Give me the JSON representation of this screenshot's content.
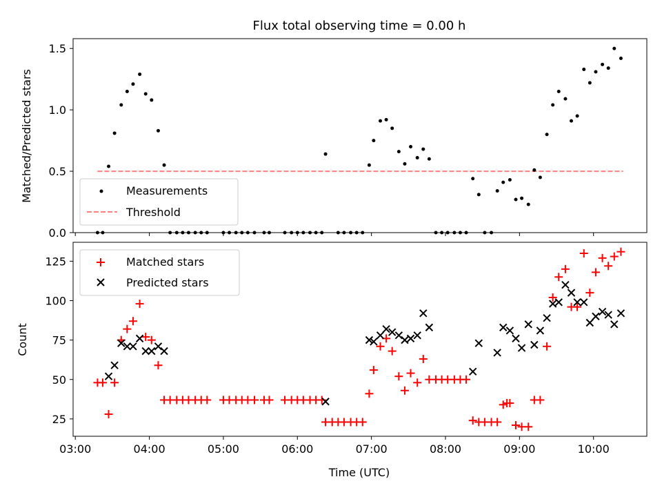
{
  "figure": {
    "title": "Flux total observing time = 0.00 h",
    "xlabel": "Time (UTC)",
    "x_ticks": [
      "03:00",
      "04:00",
      "05:00",
      "06:00",
      "07:00",
      "08:00",
      "09:00",
      "10:00"
    ]
  },
  "colors": {
    "measurements": "#000000",
    "threshold": "#ff7f7f",
    "matched": "#ff0000",
    "predicted": "#000000"
  },
  "chart_data": [
    {
      "type": "scatter",
      "panel": "top",
      "ylabel": "Matched/Predicted stars",
      "x_unit": "hours UTC",
      "xlim": [
        2.97,
        10.72
      ],
      "ylim": [
        0.0,
        1.58
      ],
      "y_ticks": [
        "0.0",
        "0.5",
        "1.0",
        "1.5"
      ],
      "grid": false,
      "legend": {
        "position": "lower-left",
        "entries": [
          "Measurements",
          "Threshold"
        ]
      },
      "threshold": {
        "name": "Threshold",
        "value": 0.5,
        "x_range": [
          3.3,
          10.4
        ],
        "style": "dashed"
      },
      "series": [
        {
          "name": "Measurements",
          "x": [
            3.3,
            3.37,
            3.45,
            3.53,
            3.62,
            3.7,
            3.78,
            3.87,
            3.95,
            4.03,
            4.12,
            4.2,
            4.28,
            4.37,
            4.45,
            4.53,
            4.62,
            4.7,
            4.78,
            5.0,
            5.08,
            5.17,
            5.25,
            5.33,
            5.42,
            5.55,
            5.62,
            5.83,
            5.92,
            6.0,
            6.08,
            6.17,
            6.25,
            6.33,
            6.38,
            6.55,
            6.63,
            6.72,
            6.8,
            6.88,
            6.97,
            7.03,
            7.12,
            7.2,
            7.28,
            7.37,
            7.45,
            7.53,
            7.62,
            7.7,
            7.78,
            7.87,
            7.95,
            8.03,
            8.12,
            8.2,
            8.28,
            8.37,
            8.45,
            8.53,
            8.62,
            8.7,
            8.78,
            8.87,
            8.95,
            9.03,
            9.12,
            9.2,
            9.28,
            9.37,
            9.45,
            9.53,
            9.62,
            9.7,
            9.78,
            9.87,
            9.95,
            10.03,
            10.12,
            10.2,
            10.28,
            10.37
          ],
          "y": [
            0,
            0,
            0.54,
            0.81,
            1.04,
            1.15,
            1.21,
            1.29,
            1.13,
            1.08,
            0.83,
            0.55,
            0,
            0,
            0,
            0,
            0,
            0,
            0,
            0,
            0,
            0,
            0,
            0,
            0,
            0,
            0,
            0,
            0,
            0,
            0,
            0,
            0,
            0,
            0.64,
            0,
            0,
            0,
            0,
            0,
            0.55,
            0.75,
            0.91,
            0.92,
            0.85,
            0.66,
            0.56,
            0.7,
            0.61,
            0.68,
            0.6,
            0,
            0,
            0,
            0,
            0,
            0,
            0.44,
            0.31,
            0,
            0,
            0.34,
            0.41,
            0.43,
            0.27,
            0.28,
            0.23,
            0.51,
            0.45,
            0.8,
            1.04,
            1.15,
            1.09,
            0.91,
            0.95,
            1.33,
            1.22,
            1.31,
            1.37,
            1.34,
            1.5,
            1.42
          ]
        }
      ]
    },
    {
      "type": "scatter",
      "panel": "bottom",
      "ylabel": "Count",
      "x_unit": "hours UTC",
      "xlim": [
        2.97,
        10.72
      ],
      "ylim": [
        14,
        137
      ],
      "y_ticks": [
        "25",
        "50",
        "75",
        "100",
        "125"
      ],
      "grid": false,
      "legend": {
        "position": "upper-left",
        "entries": [
          "Matched stars",
          "Predicted stars"
        ]
      },
      "series": [
        {
          "name": "Matched stars",
          "marker": "plus",
          "x": [
            3.3,
            3.37,
            3.45,
            3.53,
            3.62,
            3.7,
            3.78,
            3.87,
            3.95,
            4.03,
            4.12,
            4.2,
            4.28,
            4.37,
            4.45,
            4.53,
            4.62,
            4.7,
            4.78,
            5.0,
            5.08,
            5.17,
            5.25,
            5.33,
            5.42,
            5.55,
            5.62,
            5.83,
            5.92,
            6.0,
            6.08,
            6.17,
            6.25,
            6.33,
            6.38,
            6.47,
            6.55,
            6.63,
            6.72,
            6.8,
            6.88,
            6.97,
            7.03,
            7.12,
            7.2,
            7.28,
            7.37,
            7.45,
            7.53,
            7.62,
            7.7,
            7.78,
            7.87,
            7.95,
            8.03,
            8.12,
            8.2,
            8.28,
            8.37,
            8.45,
            8.53,
            8.62,
            8.7,
            8.78,
            8.83,
            8.87,
            8.95,
            9.03,
            9.12,
            9.2,
            9.28,
            9.37,
            9.45,
            9.53,
            9.62,
            9.7,
            9.78,
            9.87,
            9.95,
            10.03,
            10.12,
            10.2,
            10.28,
            10.37
          ],
          "y": [
            48,
            48,
            28,
            48,
            75,
            82,
            87,
            98,
            77,
            75,
            59,
            37,
            37,
            37,
            37,
            37,
            37,
            37,
            37,
            37,
            37,
            37,
            37,
            37,
            37,
            37,
            37,
            37,
            37,
            37,
            37,
            37,
            37,
            37,
            23,
            23,
            23,
            23,
            23,
            23,
            23,
            41,
            56,
            71,
            76,
            68,
            52,
            43,
            54,
            48,
            63,
            50,
            50,
            50,
            50,
            50,
            50,
            50,
            24,
            23,
            23,
            23,
            23,
            34,
            35,
            35,
            21,
            20,
            20,
            37,
            37,
            71,
            102,
            115,
            120,
            96,
            96,
            130,
            105,
            118,
            127,
            122,
            128,
            131
          ]
        },
        {
          "name": "Predicted stars",
          "marker": "x",
          "x": [
            3.45,
            3.53,
            3.62,
            3.7,
            3.78,
            3.87,
            3.95,
            4.03,
            4.12,
            4.2,
            6.38,
            6.97,
            7.03,
            7.12,
            7.2,
            7.28,
            7.37,
            7.45,
            7.53,
            7.62,
            7.7,
            7.78,
            8.37,
            8.45,
            8.7,
            8.78,
            8.87,
            8.95,
            9.03,
            9.12,
            9.2,
            9.28,
            9.37,
            9.45,
            9.53,
            9.62,
            9.7,
            9.78,
            9.87,
            9.95,
            10.03,
            10.12,
            10.2,
            10.28,
            10.37
          ],
          "y": [
            52,
            59,
            73,
            71,
            71,
            76,
            68,
            68,
            71,
            68,
            36,
            75,
            74,
            78,
            82,
            80,
            78,
            75,
            76,
            78,
            92,
            83,
            55,
            73,
            67,
            83,
            81,
            76,
            70,
            85,
            72,
            81,
            89,
            98,
            99,
            110,
            105,
            99,
            99,
            86,
            90,
            93,
            91,
            85,
            92
          ]
        }
      ]
    }
  ]
}
